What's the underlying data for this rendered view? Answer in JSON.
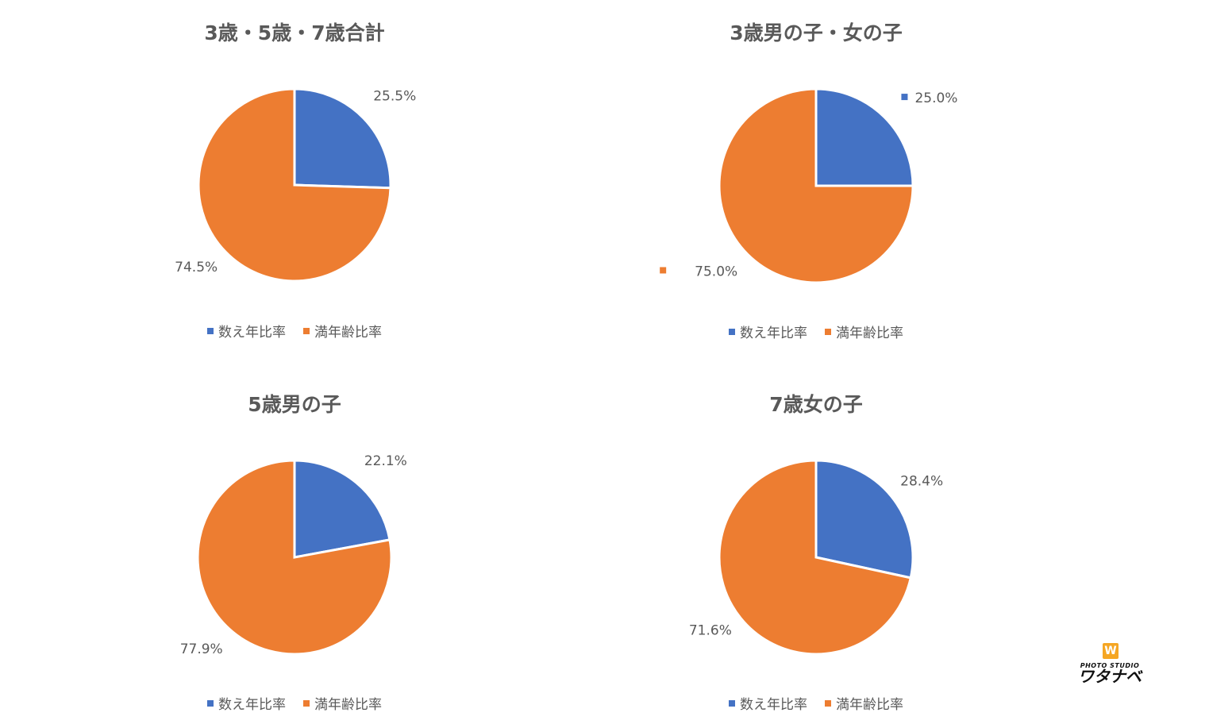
{
  "chart_data": [
    {
      "type": "pie",
      "title": "3歳・5歳・7歳合計",
      "labels": [
        "数え年比率",
        "満年齢比率"
      ],
      "values": [
        25.5,
        74.5
      ],
      "data_labels": [
        "25.5%",
        "74.5%"
      ],
      "colors": [
        "#4472c4",
        "#ed7d31"
      ],
      "legend_position": "bottom"
    },
    {
      "type": "pie",
      "title": "3歳男の子・女の子",
      "labels": [
        "数え年比率",
        "満年齢比率"
      ],
      "values": [
        25.0,
        75.0
      ],
      "data_labels": [
        "25.0%",
        "75.0%"
      ],
      "colors": [
        "#4472c4",
        "#ed7d31"
      ],
      "legend_position": "bottom"
    },
    {
      "type": "pie",
      "title": "5歳男の子",
      "labels": [
        "数え年比率",
        "満年齢比率"
      ],
      "values": [
        22.1,
        77.9
      ],
      "data_labels": [
        "22.1%",
        "77.9%"
      ],
      "colors": [
        "#4472c4",
        "#ed7d31"
      ],
      "legend_position": "bottom"
    },
    {
      "type": "pie",
      "title": "7歳女の子",
      "labels": [
        "数え年比率",
        "満年齢比率"
      ],
      "values": [
        28.4,
        71.6
      ],
      "data_labels": [
        "28.4%",
        "71.6%"
      ],
      "colors": [
        "#4472c4",
        "#ed7d31"
      ],
      "legend_position": "bottom"
    }
  ],
  "logo": {
    "badge": "W",
    "subtitle": "PHOTO STUDIO",
    "name": "ワタナベ"
  }
}
